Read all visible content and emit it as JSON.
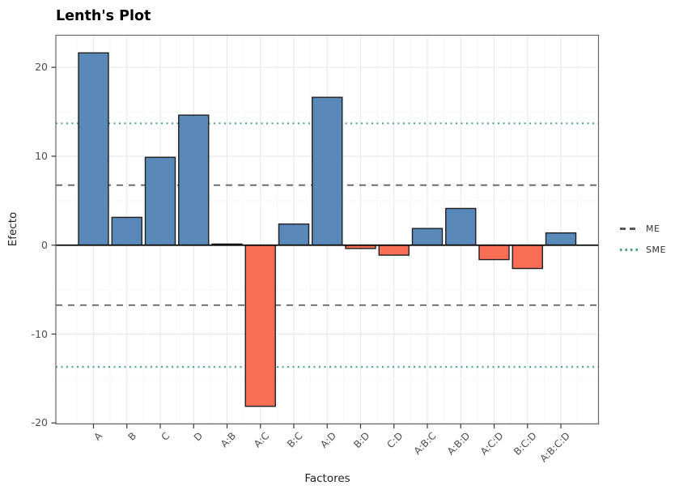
{
  "chart_data": {
    "type": "bar",
    "title": "Lenth's Plot",
    "xlabel": "Factores",
    "ylabel": "Efecto",
    "categories": [
      "A",
      "B",
      "C",
      "D",
      "A:B",
      "A:C",
      "B:C",
      "A:D",
      "B:D",
      "C:D",
      "A:B:C",
      "A:B:D",
      "A:C:D",
      "B:C:D",
      "A:B:C:D"
    ],
    "values": [
      21.625,
      3.125,
      9.875,
      14.625,
      0.125,
      -18.125,
      2.375,
      16.625,
      -0.375,
      -1.125,
      1.875,
      4.125,
      -1.625,
      -2.625,
      1.375
    ],
    "ylim": [
      -20.11,
      23.61
    ],
    "yticks": [
      -20,
      -10,
      0,
      10,
      20
    ],
    "yticks_minor": [
      -15,
      -5,
      5,
      15
    ],
    "grid": true,
    "legend_position": "right",
    "reference_lines": [
      {
        "name": "ME",
        "value": 6.75,
        "style": "dashed",
        "color": "#595959"
      },
      {
        "name": "SME",
        "value": 13.7,
        "style": "dotted",
        "color": "#3fa470"
      }
    ],
    "legend": {
      "me_label": "ME",
      "sme_label": "SME"
    },
    "colors": {
      "bar_positive": "#5889b8",
      "bar_negative": "#fa6e56",
      "bar_border": "#1f1f1f",
      "zero_line": "#000000",
      "me_line": "#595959",
      "sme_line": "#3fa470",
      "grid_major": "#e8e8e8",
      "grid_minor": "#f4f4f4",
      "panel_border": "#666666",
      "tick_mark": "#333333",
      "axis_text": "#4d4d4d"
    }
  }
}
